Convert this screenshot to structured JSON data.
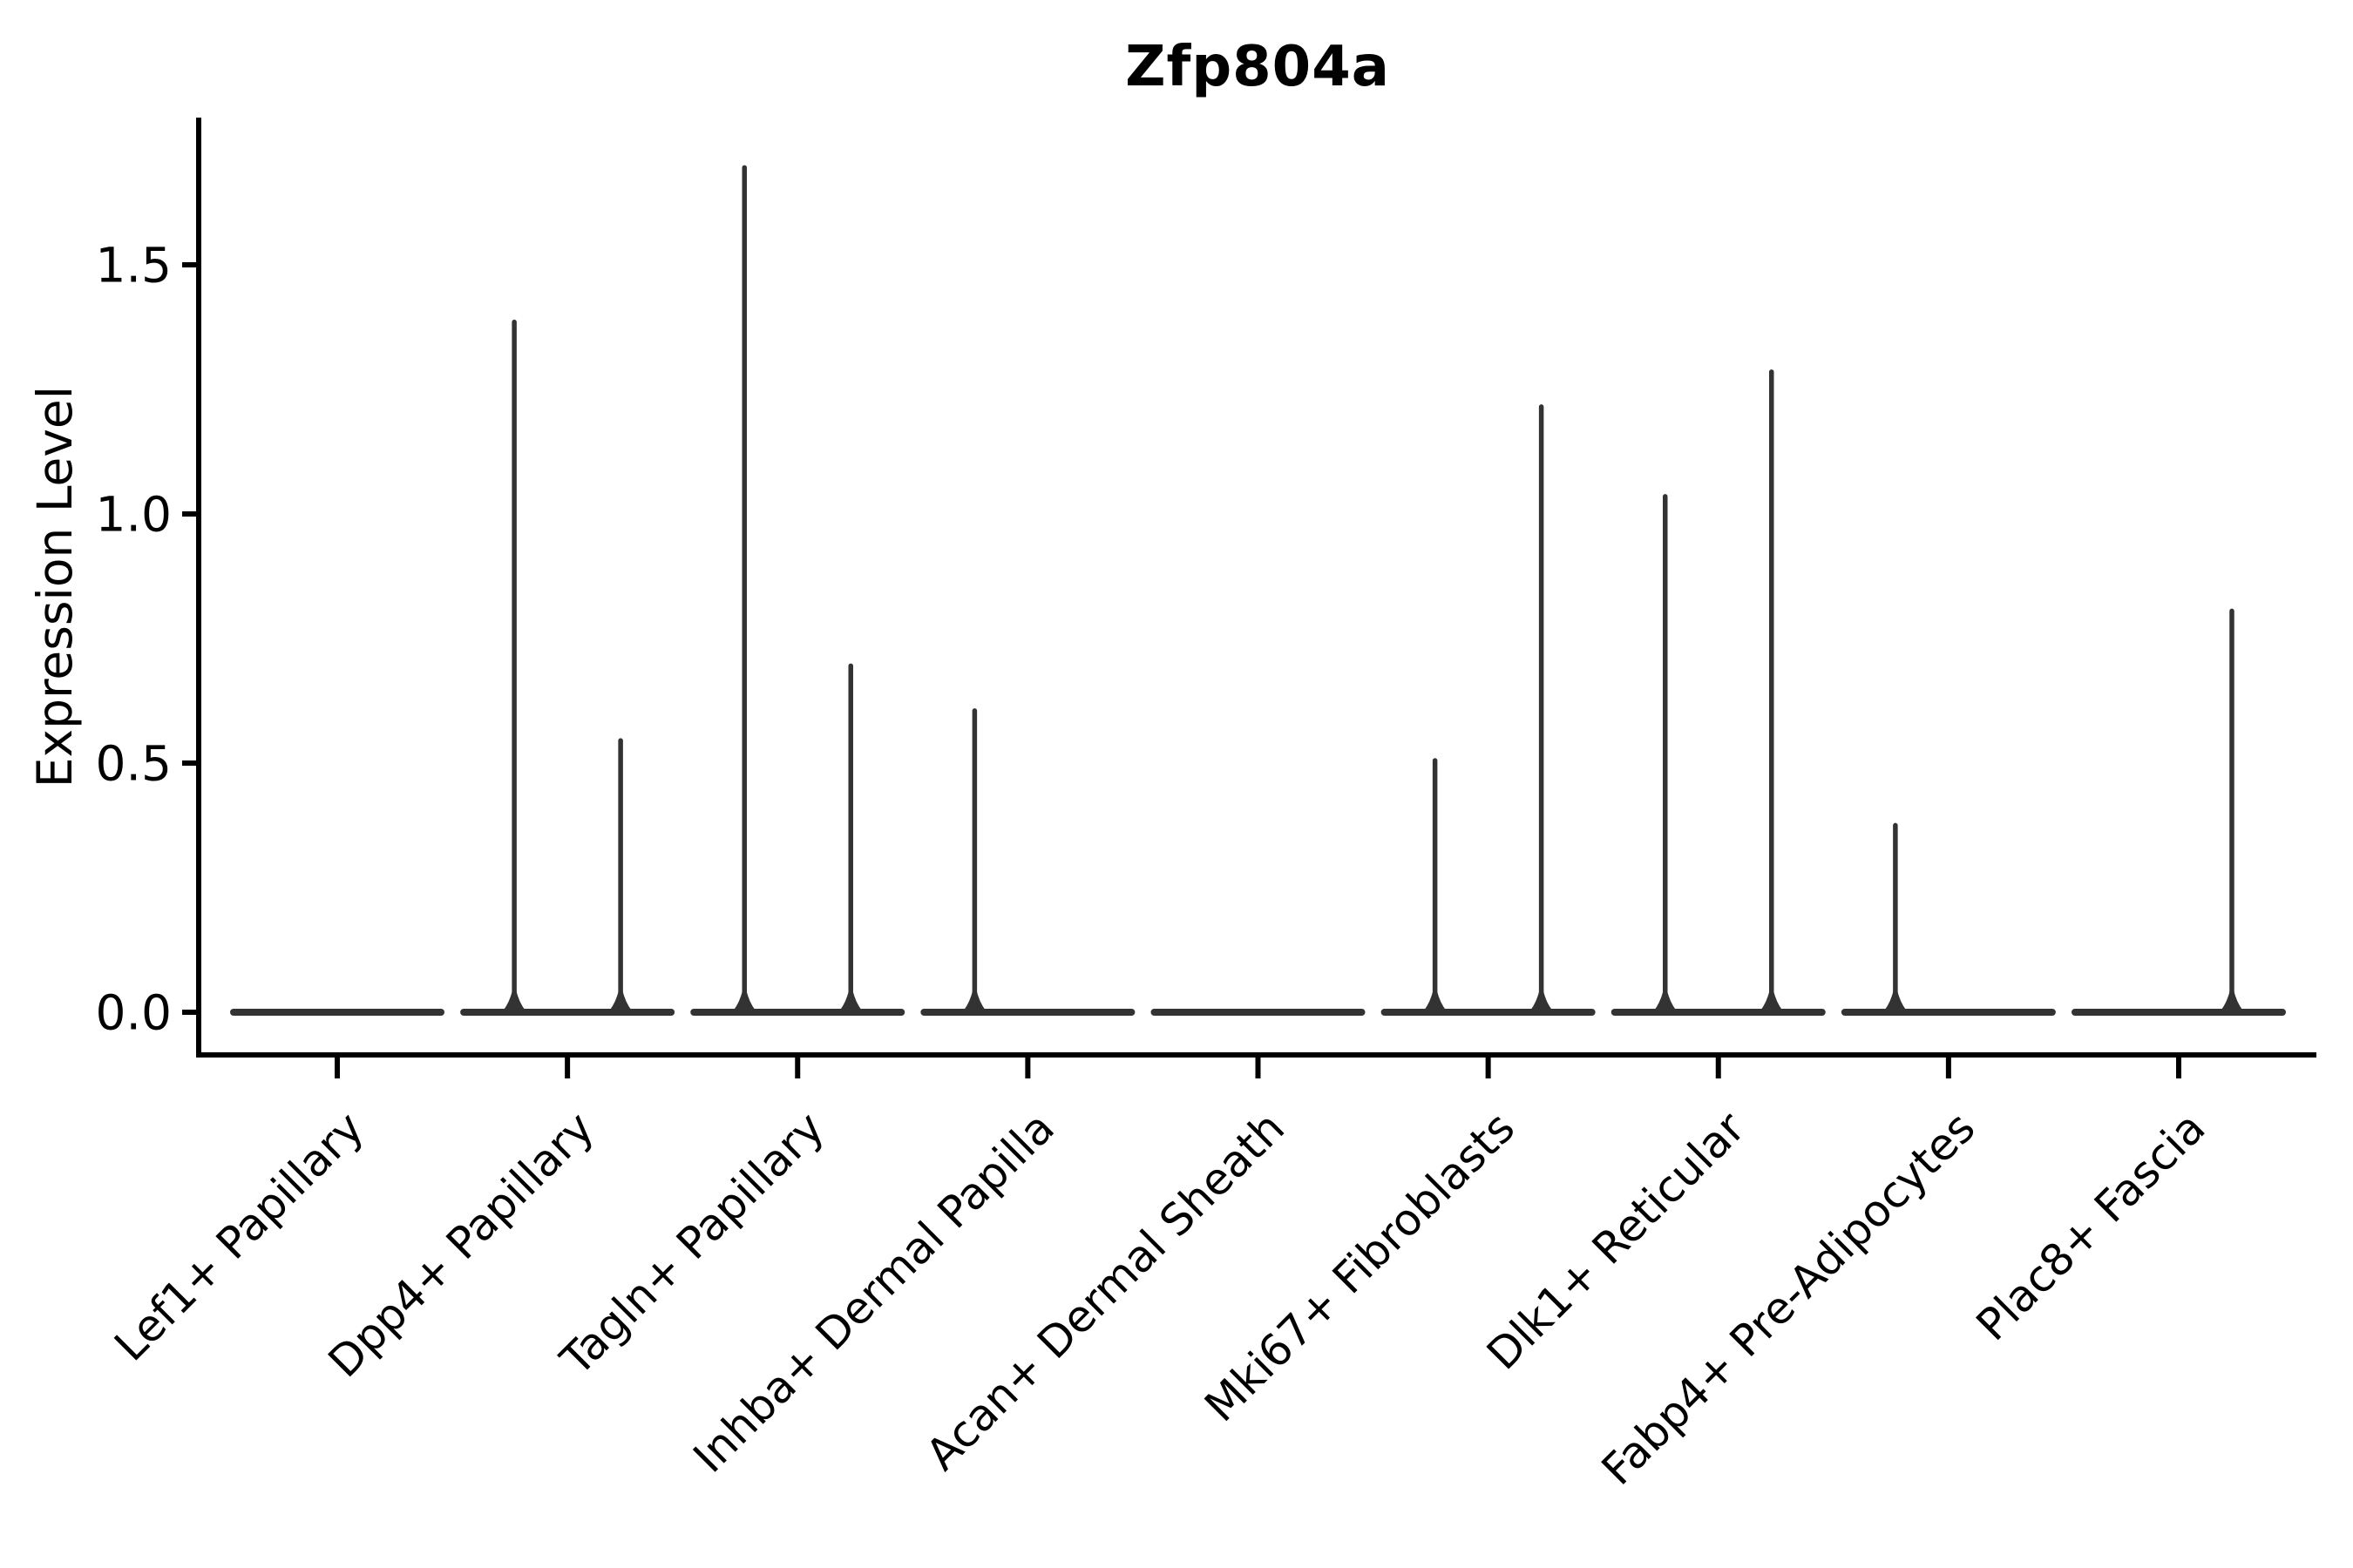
{
  "chart_data": {
    "type": "violin",
    "title": "Zfp804a",
    "ylabel": "Expression Level",
    "xlabel": "",
    "grid": false,
    "legend": "none",
    "yticks": [
      "0.0",
      "0.5",
      "1.0",
      "1.5"
    ],
    "ytick_values": [
      0.0,
      0.5,
      1.0,
      1.5
    ],
    "ylim": [
      -0.09,
      1.8
    ],
    "categories": [
      "Lef1+ Papillary",
      "Dpp4+ Papillary",
      "Tagln+ Papillary",
      "Inhba+ Dermal Papilla",
      "Acan+ Dermal Sheath",
      "Mki67+ Fibroblasts",
      "Dlk1+ Reticular",
      "Fabp4+ Pre-Adipocytes",
      "Plac8+ Fascia"
    ],
    "series": [
      {
        "name": "left-violin",
        "dodge": "left",
        "max_expression": [
          0,
          1.39,
          1.7,
          0.61,
          0,
          0.51,
          1.04,
          0.38,
          0
        ]
      },
      {
        "name": "right-violin",
        "dodge": "right",
        "max_expression": [
          0,
          0.55,
          0.7,
          0,
          0,
          1.22,
          1.29,
          0,
          0.81
        ]
      }
    ],
    "baseline_value": 0.0,
    "colors": {
      "violin": "#333333",
      "axis": "#000000",
      "text": "#000000",
      "background": "#ffffff"
    }
  }
}
